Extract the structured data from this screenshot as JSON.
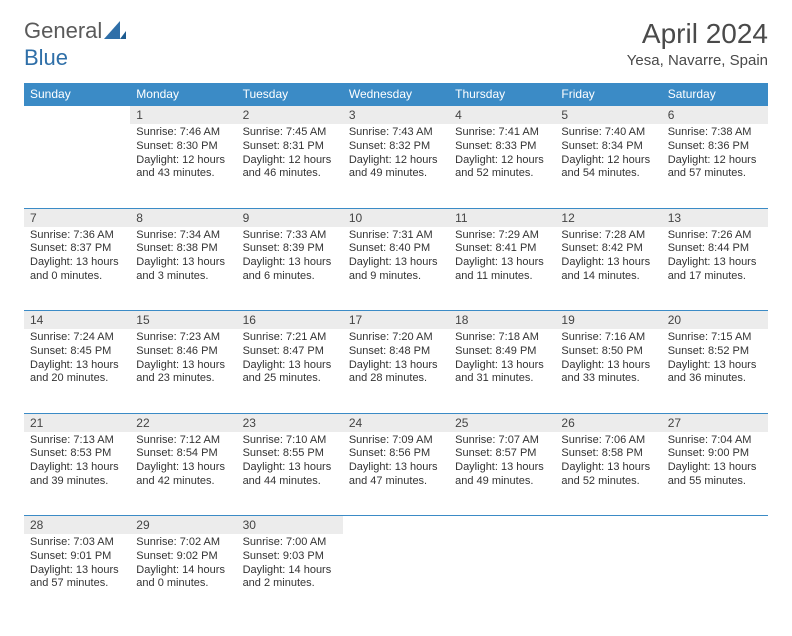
{
  "logo": {
    "general": "General",
    "blue": "Blue"
  },
  "title": "April 2024",
  "subtitle": "Yesa, Navarre, Spain",
  "colors": {
    "header_bg": "#3b8bc6",
    "header_text": "#ffffff",
    "daynum_bg": "#ececec",
    "row_divider": "#3b8bc6",
    "title_color": "#4a4a4a",
    "logo_gray": "#5a5a5a",
    "logo_blue": "#2f6fa8",
    "text_color": "#333333",
    "background": "#ffffff"
  },
  "typography": {
    "title_fontsize": 28,
    "subtitle_fontsize": 15,
    "header_fontsize": 12,
    "daynum_fontsize": 12,
    "body_fontsize": 11,
    "logo_fontsize": 22
  },
  "dayHeaders": [
    "Sunday",
    "Monday",
    "Tuesday",
    "Wednesday",
    "Thursday",
    "Friday",
    "Saturday"
  ],
  "weeks": [
    [
      null,
      {
        "n": "1",
        "sr": "Sunrise: 7:46 AM",
        "ss": "Sunset: 8:30 PM",
        "d1": "Daylight: 12 hours",
        "d2": "and 43 minutes."
      },
      {
        "n": "2",
        "sr": "Sunrise: 7:45 AM",
        "ss": "Sunset: 8:31 PM",
        "d1": "Daylight: 12 hours",
        "d2": "and 46 minutes."
      },
      {
        "n": "3",
        "sr": "Sunrise: 7:43 AM",
        "ss": "Sunset: 8:32 PM",
        "d1": "Daylight: 12 hours",
        "d2": "and 49 minutes."
      },
      {
        "n": "4",
        "sr": "Sunrise: 7:41 AM",
        "ss": "Sunset: 8:33 PM",
        "d1": "Daylight: 12 hours",
        "d2": "and 52 minutes."
      },
      {
        "n": "5",
        "sr": "Sunrise: 7:40 AM",
        "ss": "Sunset: 8:34 PM",
        "d1": "Daylight: 12 hours",
        "d2": "and 54 minutes."
      },
      {
        "n": "6",
        "sr": "Sunrise: 7:38 AM",
        "ss": "Sunset: 8:36 PM",
        "d1": "Daylight: 12 hours",
        "d2": "and 57 minutes."
      }
    ],
    [
      {
        "n": "7",
        "sr": "Sunrise: 7:36 AM",
        "ss": "Sunset: 8:37 PM",
        "d1": "Daylight: 13 hours",
        "d2": "and 0 minutes."
      },
      {
        "n": "8",
        "sr": "Sunrise: 7:34 AM",
        "ss": "Sunset: 8:38 PM",
        "d1": "Daylight: 13 hours",
        "d2": "and 3 minutes."
      },
      {
        "n": "9",
        "sr": "Sunrise: 7:33 AM",
        "ss": "Sunset: 8:39 PM",
        "d1": "Daylight: 13 hours",
        "d2": "and 6 minutes."
      },
      {
        "n": "10",
        "sr": "Sunrise: 7:31 AM",
        "ss": "Sunset: 8:40 PM",
        "d1": "Daylight: 13 hours",
        "d2": "and 9 minutes."
      },
      {
        "n": "11",
        "sr": "Sunrise: 7:29 AM",
        "ss": "Sunset: 8:41 PM",
        "d1": "Daylight: 13 hours",
        "d2": "and 11 minutes."
      },
      {
        "n": "12",
        "sr": "Sunrise: 7:28 AM",
        "ss": "Sunset: 8:42 PM",
        "d1": "Daylight: 13 hours",
        "d2": "and 14 minutes."
      },
      {
        "n": "13",
        "sr": "Sunrise: 7:26 AM",
        "ss": "Sunset: 8:44 PM",
        "d1": "Daylight: 13 hours",
        "d2": "and 17 minutes."
      }
    ],
    [
      {
        "n": "14",
        "sr": "Sunrise: 7:24 AM",
        "ss": "Sunset: 8:45 PM",
        "d1": "Daylight: 13 hours",
        "d2": "and 20 minutes."
      },
      {
        "n": "15",
        "sr": "Sunrise: 7:23 AM",
        "ss": "Sunset: 8:46 PM",
        "d1": "Daylight: 13 hours",
        "d2": "and 23 minutes."
      },
      {
        "n": "16",
        "sr": "Sunrise: 7:21 AM",
        "ss": "Sunset: 8:47 PM",
        "d1": "Daylight: 13 hours",
        "d2": "and 25 minutes."
      },
      {
        "n": "17",
        "sr": "Sunrise: 7:20 AM",
        "ss": "Sunset: 8:48 PM",
        "d1": "Daylight: 13 hours",
        "d2": "and 28 minutes."
      },
      {
        "n": "18",
        "sr": "Sunrise: 7:18 AM",
        "ss": "Sunset: 8:49 PM",
        "d1": "Daylight: 13 hours",
        "d2": "and 31 minutes."
      },
      {
        "n": "19",
        "sr": "Sunrise: 7:16 AM",
        "ss": "Sunset: 8:50 PM",
        "d1": "Daylight: 13 hours",
        "d2": "and 33 minutes."
      },
      {
        "n": "20",
        "sr": "Sunrise: 7:15 AM",
        "ss": "Sunset: 8:52 PM",
        "d1": "Daylight: 13 hours",
        "d2": "and 36 minutes."
      }
    ],
    [
      {
        "n": "21",
        "sr": "Sunrise: 7:13 AM",
        "ss": "Sunset: 8:53 PM",
        "d1": "Daylight: 13 hours",
        "d2": "and 39 minutes."
      },
      {
        "n": "22",
        "sr": "Sunrise: 7:12 AM",
        "ss": "Sunset: 8:54 PM",
        "d1": "Daylight: 13 hours",
        "d2": "and 42 minutes."
      },
      {
        "n": "23",
        "sr": "Sunrise: 7:10 AM",
        "ss": "Sunset: 8:55 PM",
        "d1": "Daylight: 13 hours",
        "d2": "and 44 minutes."
      },
      {
        "n": "24",
        "sr": "Sunrise: 7:09 AM",
        "ss": "Sunset: 8:56 PM",
        "d1": "Daylight: 13 hours",
        "d2": "and 47 minutes."
      },
      {
        "n": "25",
        "sr": "Sunrise: 7:07 AM",
        "ss": "Sunset: 8:57 PM",
        "d1": "Daylight: 13 hours",
        "d2": "and 49 minutes."
      },
      {
        "n": "26",
        "sr": "Sunrise: 7:06 AM",
        "ss": "Sunset: 8:58 PM",
        "d1": "Daylight: 13 hours",
        "d2": "and 52 minutes."
      },
      {
        "n": "27",
        "sr": "Sunrise: 7:04 AM",
        "ss": "Sunset: 9:00 PM",
        "d1": "Daylight: 13 hours",
        "d2": "and 55 minutes."
      }
    ],
    [
      {
        "n": "28",
        "sr": "Sunrise: 7:03 AM",
        "ss": "Sunset: 9:01 PM",
        "d1": "Daylight: 13 hours",
        "d2": "and 57 minutes."
      },
      {
        "n": "29",
        "sr": "Sunrise: 7:02 AM",
        "ss": "Sunset: 9:02 PM",
        "d1": "Daylight: 14 hours",
        "d2": "and 0 minutes."
      },
      {
        "n": "30",
        "sr": "Sunrise: 7:00 AM",
        "ss": "Sunset: 9:03 PM",
        "d1": "Daylight: 14 hours",
        "d2": "and 2 minutes."
      },
      null,
      null,
      null,
      null
    ]
  ]
}
